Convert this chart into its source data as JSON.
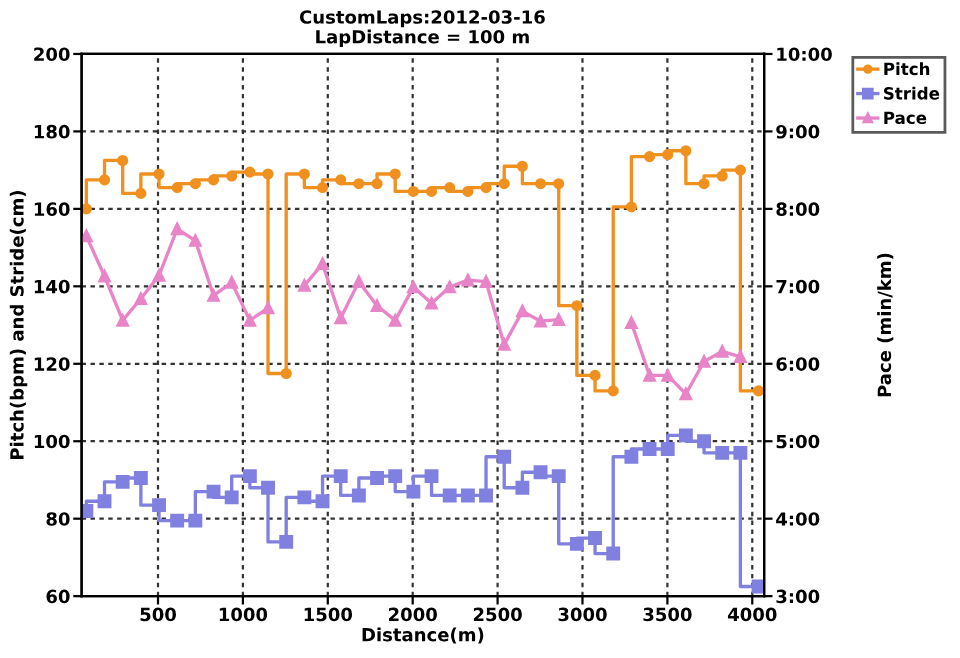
{
  "chart_data": {
    "type": "line",
    "title": "CustomLaps:2012-03-16",
    "subtitle": "LapDistance = 100 m",
    "xlabel": "Distance(m)",
    "ylabel": "Pitch(bpm) and Stride(cm)",
    "y2label": "Pace (min/km)",
    "x": [
      78,
      185,
      292,
      399,
      506,
      613,
      720,
      827,
      934,
      1041,
      1148,
      1255,
      1362,
      1469,
      1576,
      1683,
      1790,
      1897,
      2004,
      2111,
      2218,
      2325,
      2432,
      2539,
      2646,
      2753,
      2860,
      2967,
      3074,
      3181,
      3288,
      3395,
      3502,
      3609,
      3716,
      3823,
      3930,
      4037
    ],
    "series": [
      {
        "name": "Pitch",
        "type": "step",
        "color": "#f0901e",
        "marker": "circle",
        "values": [
          160,
          167.5,
          172.5,
          164,
          169,
          165.5,
          166.5,
          167.5,
          168.5,
          169.5,
          169,
          117.5,
          169,
          165.5,
          167.5,
          166.5,
          166.5,
          169,
          164.5,
          164.5,
          165.5,
          164.5,
          165.5,
          166.5,
          171,
          166.5,
          166.5,
          135,
          117,
          113,
          160.5,
          173.5,
          174,
          175,
          166.5,
          168.5,
          170,
          113
        ]
      },
      {
        "name": "Stride",
        "type": "step",
        "color": "#8080e0",
        "marker": "square",
        "values": [
          82,
          84.5,
          89.5,
          90.5,
          83.5,
          79.5,
          79.5,
          87,
          85.5,
          91,
          88,
          74,
          85.5,
          84.5,
          91,
          86,
          90.5,
          91,
          87,
          91,
          86,
          86,
          86,
          96,
          88,
          92,
          91,
          73.5,
          75,
          71,
          96,
          98,
          98,
          101.5,
          100,
          97,
          97,
          62.5
        ]
      },
      {
        "name": "Pace",
        "axis": "y2",
        "color": "#e884c8",
        "marker": "triangle",
        "values": [
          7.65,
          7.13,
          6.56,
          6.84,
          7.14,
          7.74,
          7.59,
          6.88,
          7.05,
          6.56,
          6.72,
          null,
          7.01,
          7.29,
          6.59,
          7.06,
          6.75,
          6.56,
          6.99,
          6.78,
          6.99,
          7.08,
          7.06,
          6.25,
          6.68,
          6.55,
          6.57,
          null,
          null,
          null,
          6.53,
          5.85,
          5.85,
          5.61,
          6.03,
          6.16,
          6.09,
          null
        ]
      }
    ],
    "xlim": [
      50,
      4070
    ],
    "xticks": [
      500,
      1000,
      1500,
      2000,
      2500,
      3000,
      3500,
      4000
    ],
    "ylim": [
      60,
      200
    ],
    "yticks": [
      60,
      80,
      100,
      120,
      140,
      160,
      180,
      200
    ],
    "y2lim": [
      3,
      10
    ],
    "y2ticks": [
      {
        "value": 3,
        "label": "3:00"
      },
      {
        "value": 4,
        "label": "4:00"
      },
      {
        "value": 5,
        "label": "5:00"
      },
      {
        "value": 6,
        "label": "6:00"
      },
      {
        "value": 7,
        "label": "7:00"
      },
      {
        "value": 8,
        "label": "8:00"
      },
      {
        "value": 9,
        "label": "9:00"
      },
      {
        "value": 10,
        "label": "10:00"
      }
    ],
    "grid": true,
    "legend": "right"
  }
}
